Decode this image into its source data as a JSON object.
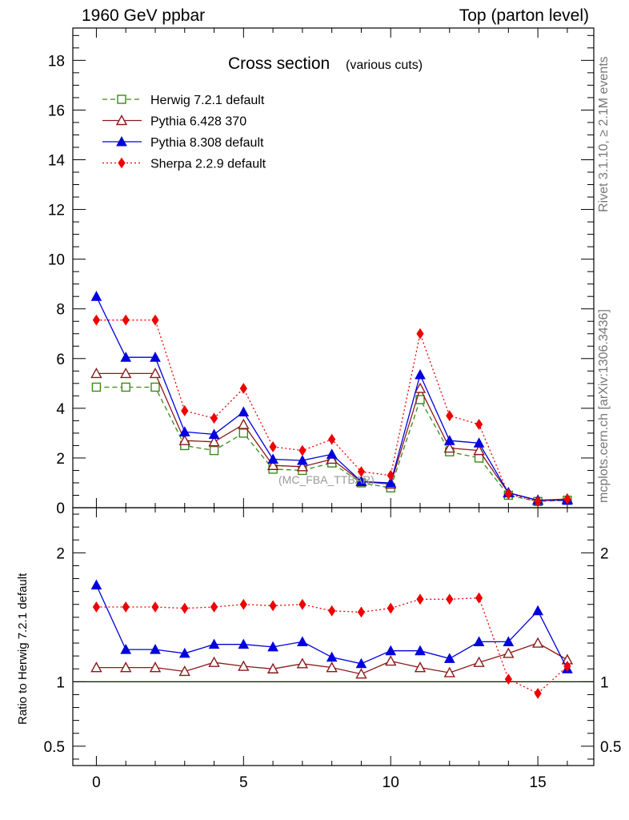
{
  "header": {
    "left": "1960 GeV ppbar",
    "right": "Top (parton level)"
  },
  "side_labels": {
    "top": "Rivet 3.1.10, ≥ 2.1M events",
    "bottom": "mcplots.cern.ch [arXiv:1306.3436]"
  },
  "colors": {
    "herwig": "#3a8a1a",
    "pythia6": "#8b1a1a",
    "pythia8": "#0000dd",
    "sherpa": "#ee0000"
  },
  "chart_data": [
    {
      "type": "line",
      "title": "Cross section",
      "subtitle": "(various cuts)",
      "watermark": "(MC_FBA_TTBAR)",
      "x": [
        0,
        1,
        2,
        3,
        4,
        5,
        6,
        7,
        8,
        9,
        10,
        11,
        12,
        13,
        14,
        15,
        16
      ],
      "xlim": [
        -0.8,
        16.9
      ],
      "ylim": [
        0,
        19.3
      ],
      "yticks": [
        0,
        2,
        4,
        6,
        8,
        10,
        12,
        14,
        16,
        18
      ],
      "legend_position": "top-left",
      "series": [
        {
          "name": "Herwig 7.2.1 default",
          "color": "#3a8a1a",
          "line": "dashed",
          "marker": "open-square",
          "values": [
            4.85,
            4.85,
            4.85,
            2.5,
            2.3,
            3.0,
            1.55,
            1.5,
            1.8,
            1.0,
            0.8,
            4.35,
            2.25,
            2.0,
            0.5,
            0.25,
            0.3
          ]
        },
        {
          "name": "Pythia 6.428 370",
          "color": "#8b1a1a",
          "line": "solid",
          "marker": "open-triangle",
          "values": [
            5.4,
            5.4,
            5.4,
            2.7,
            2.65,
            3.35,
            1.7,
            1.65,
            1.95,
            1.05,
            0.95,
            4.8,
            2.4,
            2.3,
            0.6,
            0.3,
            0.35
          ]
        },
        {
          "name": "Pythia 8.308 default",
          "color": "#0000dd",
          "line": "solid",
          "marker": "filled-triangle",
          "values": [
            8.5,
            6.05,
            6.05,
            3.05,
            2.95,
            3.85,
            1.95,
            1.9,
            2.15,
            1.05,
            1.0,
            5.35,
            2.7,
            2.6,
            0.6,
            0.3,
            0.3
          ]
        },
        {
          "name": "Sherpa 2.2.9 default",
          "color": "#ee0000",
          "line": "dotted",
          "marker": "filled-diamond",
          "values": [
            7.55,
            7.55,
            7.55,
            3.9,
            3.6,
            4.8,
            2.45,
            2.3,
            2.75,
            1.45,
            1.3,
            7.0,
            3.7,
            3.35,
            0.55,
            0.25,
            0.35
          ]
        }
      ]
    },
    {
      "type": "line",
      "ylabel": "Ratio to Herwig 7.2.1 default",
      "x": [
        0,
        1,
        2,
        3,
        4,
        5,
        6,
        7,
        8,
        9,
        10,
        11,
        12,
        13,
        14,
        15,
        16
      ],
      "xlim": [
        -0.8,
        16.9
      ],
      "ylim": [
        0.35,
        2.35
      ],
      "yticks": [
        0.5,
        1,
        2
      ],
      "xticks": [
        0,
        5,
        10,
        15
      ],
      "reference_line": 1,
      "series": [
        {
          "name": "Pythia 6.428 370",
          "color": "#8b1a1a",
          "line": "solid",
          "marker": "open-triangle",
          "values": [
            1.11,
            1.11,
            1.11,
            1.08,
            1.15,
            1.12,
            1.1,
            1.14,
            1.11,
            1.06,
            1.16,
            1.11,
            1.07,
            1.15,
            1.22,
            1.3,
            1.17
          ]
        },
        {
          "name": "Pythia 8.308 default",
          "color": "#0000dd",
          "line": "solid",
          "marker": "filled-triangle",
          "values": [
            1.75,
            1.25,
            1.25,
            1.22,
            1.29,
            1.29,
            1.27,
            1.31,
            1.19,
            1.14,
            1.24,
            1.24,
            1.18,
            1.31,
            1.31,
            1.55,
            1.1
          ]
        },
        {
          "name": "Sherpa 2.2.9 default",
          "color": "#ee0000",
          "line": "dotted",
          "marker": "filled-diamond",
          "values": [
            1.58,
            1.58,
            1.58,
            1.57,
            1.58,
            1.6,
            1.59,
            1.6,
            1.55,
            1.54,
            1.57,
            1.64,
            1.64,
            1.65,
            1.02,
            0.91,
            1.12
          ]
        }
      ]
    }
  ]
}
